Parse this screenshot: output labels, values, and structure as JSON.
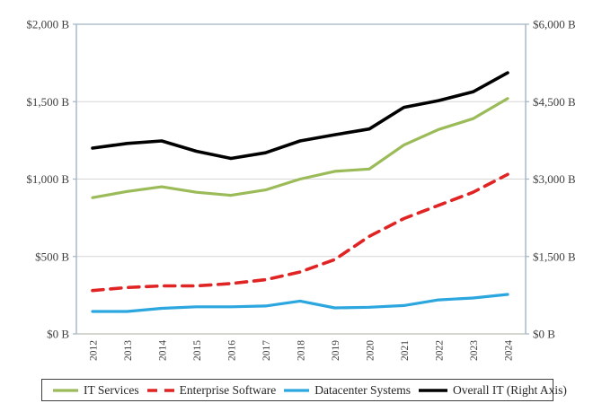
{
  "chart_data": {
    "type": "line",
    "title": "",
    "units": "billions USD",
    "x_categories": [
      "2012",
      "2013",
      "2014",
      "2015",
      "2016",
      "2017",
      "2018",
      "2019",
      "2020",
      "2021",
      "2022",
      "2023",
      "2024"
    ],
    "left_axis": {
      "min": 0,
      "max": 2000,
      "ticks_top_to_bottom": [
        "$2,000 B",
        "$1,500 B",
        "$1,000 B",
        "$500 B",
        "$0 B"
      ]
    },
    "right_axis": {
      "min": 0,
      "max": 6000,
      "ticks_top_to_bottom": [
        "$6,000 B",
        "$4,500 B",
        "$3,000 B",
        "$1,500 B",
        "$0 B"
      ]
    },
    "grid": "horizontal",
    "legend_position": "bottom",
    "series": [
      {
        "name": "IT Services",
        "color": "#9bbb59",
        "style": "solid",
        "axis": "left",
        "values": [
          880,
          920,
          950,
          915,
          895,
          930,
          1000,
          1050,
          1065,
          1220,
          1320,
          1390,
          1520
        ]
      },
      {
        "name": "Enterprise Software",
        "color": "#e02424",
        "style": "dashed",
        "axis": "left",
        "values": [
          280,
          300,
          310,
          310,
          325,
          350,
          400,
          480,
          630,
          745,
          830,
          915,
          1030
        ]
      },
      {
        "name": "Datacenter Systems",
        "color": "#2ba6de",
        "style": "solid",
        "axis": "left",
        "values": [
          145,
          145,
          165,
          175,
          175,
          180,
          212,
          168,
          172,
          183,
          220,
          232,
          255
        ]
      },
      {
        "name": "Overall IT (Right Axis)",
        "color": "#000000",
        "style": "solid",
        "axis": "right",
        "values": [
          3600,
          3690,
          3740,
          3540,
          3400,
          3510,
          3740,
          3860,
          3970,
          4390,
          4520,
          4690,
          5060
        ]
      }
    ]
  }
}
